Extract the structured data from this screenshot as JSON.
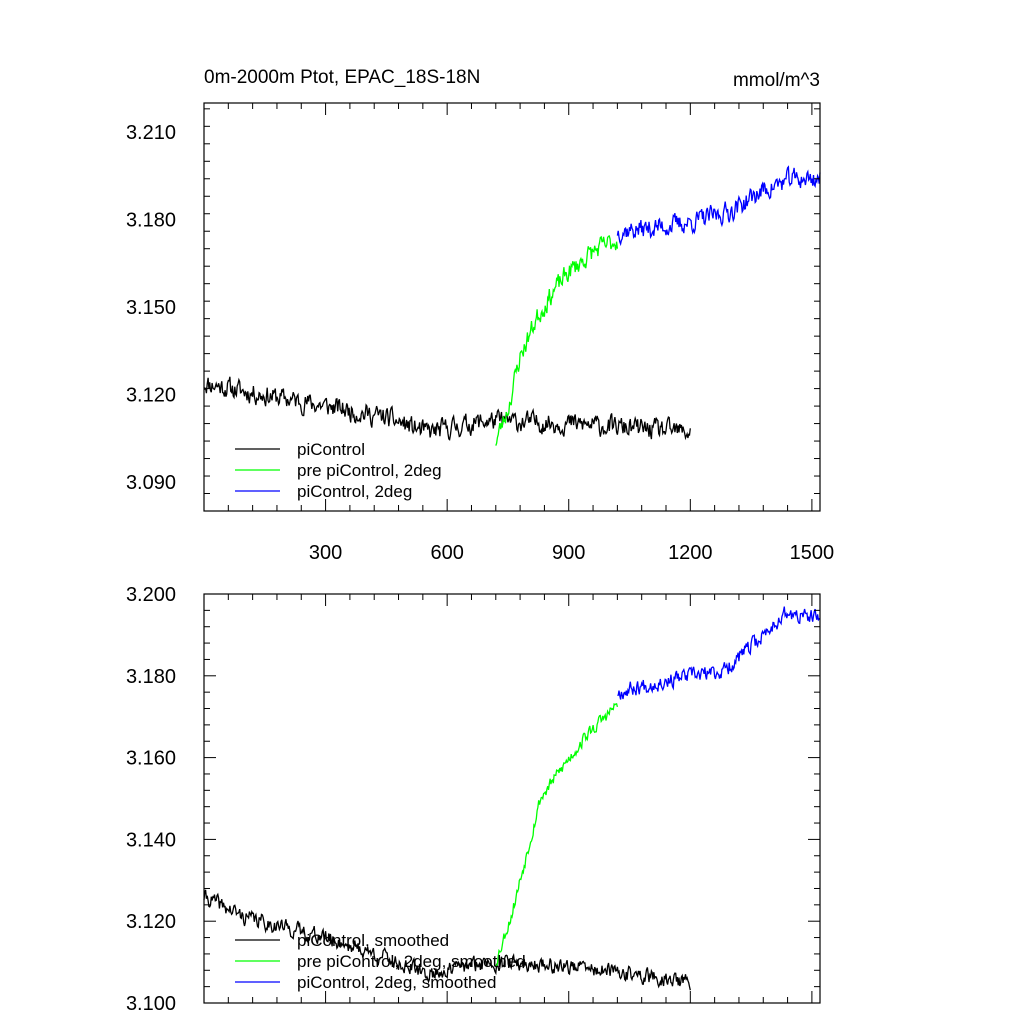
{
  "chart_data": [
    {
      "type": "line",
      "title": "0m-2000m Ptot, EPAC_18S-18N",
      "units": "mmol/m^3",
      "xlim": [
        0,
        1520
      ],
      "ylim": [
        3.08,
        3.22
      ],
      "x_ticks": [
        "300",
        "600",
        "900",
        "1200",
        "1500"
      ],
      "y_ticks": [
        "3.090",
        "3.120",
        "3.150",
        "3.180",
        "3.210"
      ],
      "legend": [
        {
          "label": "piControl",
          "color": "#000000"
        },
        {
          "label": "pre piControl, 2deg",
          "color": "#00ff00"
        },
        {
          "label": "piControl, 2deg",
          "color": "#0000ff"
        }
      ],
      "series": [
        {
          "name": "piControl",
          "color": "#000000",
          "x_range": [
            0,
            1200
          ],
          "trend": [
            [
              0,
              3.124
            ],
            [
              100,
              3.121
            ],
            [
              300,
              3.116
            ],
            [
              450,
              3.112
            ],
            [
              550,
              3.107
            ],
            [
              700,
              3.111
            ],
            [
              900,
              3.11
            ],
            [
              1200,
              3.107
            ]
          ],
          "noise": 0.0055,
          "seed": 11
        },
        {
          "name": "pre piControl, 2deg",
          "color": "#00ff00",
          "x_range": [
            720,
            1020
          ],
          "trend": [
            [
              720,
              3.104
            ],
            [
              750,
              3.115
            ],
            [
              780,
              3.133
            ],
            [
              820,
              3.146
            ],
            [
              860,
              3.155
            ],
            [
              900,
              3.162
            ],
            [
              960,
              3.169
            ],
            [
              1020,
              3.173
            ]
          ],
          "noise": 0.0055,
          "seed": 23
        },
        {
          "name": "piControl, 2deg",
          "color": "#0000ff",
          "x_range": [
            1020,
            1520
          ],
          "trend": [
            [
              1020,
              3.176
            ],
            [
              1100,
              3.177
            ],
            [
              1200,
              3.179
            ],
            [
              1300,
              3.183
            ],
            [
              1380,
              3.19
            ],
            [
              1450,
              3.194
            ],
            [
              1520,
              3.194
            ]
          ],
          "noise": 0.0055,
          "seed": 37
        }
      ]
    },
    {
      "type": "line",
      "xlim": [
        0,
        1520
      ],
      "ylim": [
        3.1,
        3.2
      ],
      "y_ticks": [
        "3.100",
        "3.120",
        "3.140",
        "3.160",
        "3.180",
        "3.200"
      ],
      "legend": [
        {
          "label": "piControl, smoothed",
          "color": "#000000"
        },
        {
          "label": "pre piControl, 2deg, smoothed",
          "color": "#00ff00"
        },
        {
          "label": "piControl, 2deg, smoothed",
          "color": "#0000ff"
        }
      ],
      "series": [
        {
          "name": "piControl, smoothed",
          "color": "#000000",
          "x_range": [
            0,
            1200
          ],
          "trend": [
            [
              0,
              3.126
            ],
            [
              100,
              3.121
            ],
            [
              300,
              3.116
            ],
            [
              450,
              3.111
            ],
            [
              550,
              3.107
            ],
            [
              700,
              3.11
            ],
            [
              900,
              3.109
            ],
            [
              1200,
              3.105
            ]
          ],
          "noise": 0.003,
          "seed": 41
        },
        {
          "name": "pre piControl, 2deg, smoothed",
          "color": "#00ff00",
          "x_range": [
            720,
            1020
          ],
          "trend": [
            [
              720,
              3.11
            ],
            [
              760,
              3.122
            ],
            [
              800,
              3.138
            ],
            [
              830,
              3.15
            ],
            [
              880,
              3.157
            ],
            [
              940,
              3.165
            ],
            [
              1020,
              3.173
            ]
          ],
          "noise": 0.0025,
          "seed": 53
        },
        {
          "name": "piControl, 2deg, smoothed",
          "color": "#0000ff",
          "x_range": [
            1020,
            1520
          ],
          "trend": [
            [
              1020,
              3.176
            ],
            [
              1100,
              3.178
            ],
            [
              1200,
              3.18
            ],
            [
              1280,
              3.181
            ],
            [
              1360,
              3.188
            ],
            [
              1430,
              3.195
            ],
            [
              1520,
              3.194
            ]
          ],
          "noise": 0.003,
          "seed": 67
        }
      ]
    }
  ]
}
